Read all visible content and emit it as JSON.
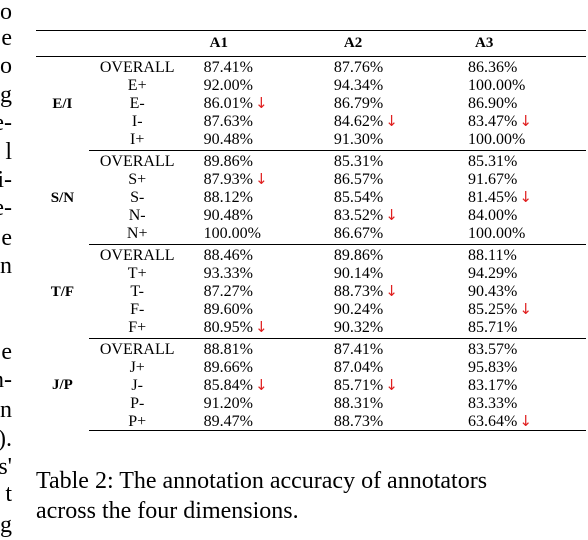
{
  "left_margin_fragments": [
    "o",
    "e",
    "o",
    "g",
    "e-",
    "l",
    "i-",
    "e-",
    "e",
    "n",
    "e",
    "n-",
    "n",
    ").",
    "s'",
    "t",
    "g"
  ],
  "table": {
    "headers": [
      "",
      "",
      "A1",
      "A2",
      "A3"
    ],
    "groups": [
      {
        "dimension": "E/I",
        "rows": [
          {
            "type": "OVERALL",
            "a1": "87.41%",
            "a2": "87.76%",
            "a3": "86.36%",
            "down": [
              false,
              false,
              false
            ]
          },
          {
            "type": "E+",
            "a1": "92.00%",
            "a2": "94.34%",
            "a3": "100.00%",
            "down": [
              false,
              false,
              false
            ]
          },
          {
            "type": "E-",
            "a1": "86.01%",
            "a2": "86.79%",
            "a3": "86.90%",
            "down": [
              true,
              false,
              false
            ]
          },
          {
            "type": "I-",
            "a1": "87.63%",
            "a2": "84.62%",
            "a3": "83.47%",
            "down": [
              false,
              true,
              true
            ]
          },
          {
            "type": "I+",
            "a1": "90.48%",
            "a2": "91.30%",
            "a3": "100.00%",
            "down": [
              false,
              false,
              false
            ]
          }
        ]
      },
      {
        "dimension": "S/N",
        "rows": [
          {
            "type": "OVERALL",
            "a1": "89.86%",
            "a2": "85.31%",
            "a3": "85.31%",
            "down": [
              false,
              false,
              false
            ]
          },
          {
            "type": "S+",
            "a1": "87.93%",
            "a2": "86.57%",
            "a3": "91.67%",
            "down": [
              true,
              false,
              false
            ]
          },
          {
            "type": "S-",
            "a1": "88.12%",
            "a2": "85.54%",
            "a3": "81.45%",
            "down": [
              false,
              false,
              true
            ]
          },
          {
            "type": "N-",
            "a1": "90.48%",
            "a2": "83.52%",
            "a3": "84.00%",
            "down": [
              false,
              true,
              false
            ]
          },
          {
            "type": "N+",
            "a1": "100.00%",
            "a2": "86.67%",
            "a3": "100.00%",
            "down": [
              false,
              false,
              false
            ]
          }
        ]
      },
      {
        "dimension": "T/F",
        "rows": [
          {
            "type": "OVERALL",
            "a1": "88.46%",
            "a2": "89.86%",
            "a3": "88.11%",
            "down": [
              false,
              false,
              false
            ]
          },
          {
            "type": "T+",
            "a1": "93.33%",
            "a2": "90.14%",
            "a3": "94.29%",
            "down": [
              false,
              false,
              false
            ]
          },
          {
            "type": "T-",
            "a1": "87.27%",
            "a2": "88.73%",
            "a3": "90.43%",
            "down": [
              false,
              true,
              false
            ]
          },
          {
            "type": "F-",
            "a1": "89.60%",
            "a2": "90.24%",
            "a3": "85.25%",
            "down": [
              false,
              false,
              true
            ]
          },
          {
            "type": "F+",
            "a1": "80.95%",
            "a2": "90.32%",
            "a3": "85.71%",
            "down": [
              true,
              false,
              false
            ]
          }
        ]
      },
      {
        "dimension": "J/P",
        "rows": [
          {
            "type": "OVERALL",
            "a1": "88.81%",
            "a2": "87.41%",
            "a3": "83.57%",
            "down": [
              false,
              false,
              false
            ]
          },
          {
            "type": "J+",
            "a1": "89.66%",
            "a2": "87.04%",
            "a3": "95.83%",
            "down": [
              false,
              false,
              false
            ]
          },
          {
            "type": "J-",
            "a1": "85.84%",
            "a2": "85.71%",
            "a3": "83.17%",
            "down": [
              true,
              true,
              false
            ]
          },
          {
            "type": "P-",
            "a1": "91.20%",
            "a2": "88.31%",
            "a3": "83.33%",
            "down": [
              false,
              false,
              false
            ]
          },
          {
            "type": "P+",
            "a1": "89.47%",
            "a2": "88.73%",
            "a3": "63.64%",
            "down": [
              false,
              false,
              true
            ]
          }
        ]
      }
    ]
  },
  "caption": {
    "line1": "Table 2: The annotation accuracy of annotators",
    "line2": "across the four dimensions."
  },
  "arrow_glyph": "↓",
  "colors": {
    "arrow": "#e02020",
    "text": "#000000",
    "background": "#ffffff"
  }
}
